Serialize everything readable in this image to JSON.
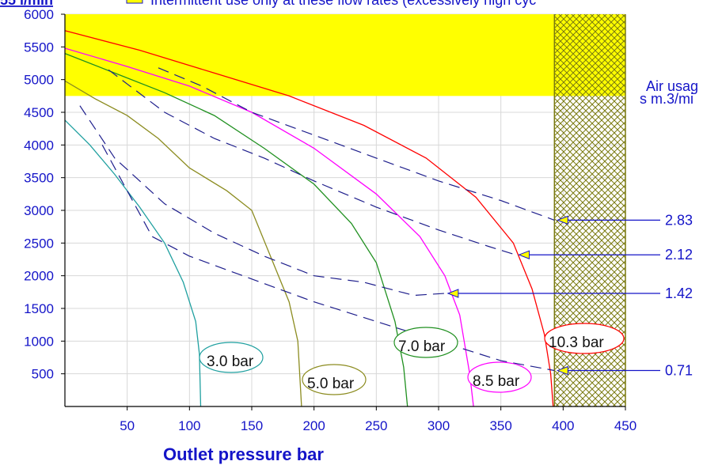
{
  "header": {
    "prefix": "55 l/min",
    "legend_text": "Intermittent use only at these flow rates (excessively high cyc"
  },
  "chart_data": {
    "type": "line",
    "xlabel": "Outlet pressure   bar",
    "xlim": [
      0,
      450
    ],
    "ylim": [
      0,
      6000
    ],
    "x_ticks": [
      50,
      100,
      150,
      200,
      250,
      300,
      350,
      400,
      450
    ],
    "y_ticks": [
      500,
      1000,
      1500,
      2000,
      2500,
      3000,
      3500,
      4000,
      4500,
      5000,
      5500,
      6000
    ],
    "shaded_regions": [
      {
        "label": "Intermittent use only",
        "type": "y-band",
        "y_from": 4750,
        "y_to": 6000,
        "color": "#ffff00"
      },
      {
        "label": "hatched",
        "type": "x-band",
        "x_from": 393,
        "x_to": 450,
        "color": "#808000"
      }
    ],
    "series": [
      {
        "name": "3.0 bar",
        "color": "#20a0a0",
        "points": [
          [
            0,
            4380
          ],
          [
            20,
            4000
          ],
          [
            40,
            3550
          ],
          [
            60,
            3050
          ],
          [
            80,
            2500
          ],
          [
            95,
            1900
          ],
          [
            105,
            1300
          ],
          [
            108,
            800
          ],
          [
            109,
            0
          ]
        ]
      },
      {
        "name": "5.0 bar",
        "color": "#8c8c20",
        "points": [
          [
            0,
            4980
          ],
          [
            25,
            4700
          ],
          [
            50,
            4450
          ],
          [
            75,
            4100
          ],
          [
            100,
            3650
          ],
          [
            130,
            3300
          ],
          [
            150,
            3000
          ],
          [
            165,
            2300
          ],
          [
            180,
            1600
          ],
          [
            187,
            1000
          ],
          [
            190,
            0
          ]
        ]
      },
      {
        "name": "7.0 bar",
        "color": "#209020",
        "points": [
          [
            0,
            5400
          ],
          [
            40,
            5100
          ],
          [
            80,
            4800
          ],
          [
            120,
            4450
          ],
          [
            160,
            3950
          ],
          [
            200,
            3400
          ],
          [
            230,
            2800
          ],
          [
            250,
            2200
          ],
          [
            265,
            1300
          ],
          [
            272,
            600
          ],
          [
            275,
            0
          ]
        ]
      },
      {
        "name": "8.5 bar",
        "color": "#ff00ff",
        "points": [
          [
            0,
            5480
          ],
          [
            50,
            5200
          ],
          [
            100,
            4900
          ],
          [
            150,
            4500
          ],
          [
            200,
            3950
          ],
          [
            250,
            3250
          ],
          [
            285,
            2600
          ],
          [
            305,
            2000
          ],
          [
            317,
            1400
          ],
          [
            325,
            500
          ],
          [
            328,
            0
          ]
        ]
      },
      {
        "name": "10.3 bar",
        "color": "#ff0000",
        "points": [
          [
            0,
            5750
          ],
          [
            60,
            5450
          ],
          [
            120,
            5100
          ],
          [
            180,
            4750
          ],
          [
            240,
            4300
          ],
          [
            290,
            3800
          ],
          [
            330,
            3200
          ],
          [
            360,
            2500
          ],
          [
            375,
            1800
          ],
          [
            385,
            1100
          ],
          [
            390,
            500
          ],
          [
            392,
            0
          ]
        ]
      }
    ],
    "air_usage": {
      "title_line1": "Air usag",
      "title_line2": "s m.3/mi",
      "lines": [
        {
          "label": "0.71",
          "points": [
            [
              30,
              4000
            ],
            [
              70,
              2600
            ],
            [
              100,
              2300
            ],
            [
              150,
              1950
            ],
            [
              200,
              1600
            ],
            [
              250,
              1300
            ],
            [
              300,
              1000
            ],
            [
              350,
              700
            ],
            [
              393,
              550
            ]
          ],
          "arrow_y": 550
        },
        {
          "label": "1.42",
          "points": [
            [
              12,
              4600
            ],
            [
              40,
              3800
            ],
            [
              80,
              3100
            ],
            [
              120,
              2650
            ],
            [
              160,
              2300
            ],
            [
              200,
              2000
            ],
            [
              240,
              1900
            ],
            [
              280,
              1700
            ],
            [
              305,
              1730
            ]
          ],
          "arrow_y": 1730
        },
        {
          "label": "2.12",
          "points": [
            [
              35,
              5150
            ],
            [
              80,
              4500
            ],
            [
              120,
              4100
            ],
            [
              160,
              3800
            ],
            [
              200,
              3450
            ],
            [
              250,
              3050
            ],
            [
              300,
              2700
            ],
            [
              340,
              2450
            ],
            [
              362,
              2320
            ]
          ],
          "arrow_y": 2320
        },
        {
          "label": "2.83",
          "points": [
            [
              75,
              5180
            ],
            [
              110,
              4900
            ],
            [
              150,
              4500
            ],
            [
              200,
              4150
            ],
            [
              250,
              3800
            ],
            [
              300,
              3450
            ],
            [
              350,
              3150
            ],
            [
              393,
              2850
            ]
          ],
          "arrow_y": 2850
        }
      ]
    },
    "curve_labels": [
      {
        "text": "3.0 bar"
      },
      {
        "text": "5.0 bar"
      },
      {
        "text": "7.0 bar"
      },
      {
        "text": "8.5 bar"
      },
      {
        "text": "10.3 bar"
      }
    ]
  }
}
